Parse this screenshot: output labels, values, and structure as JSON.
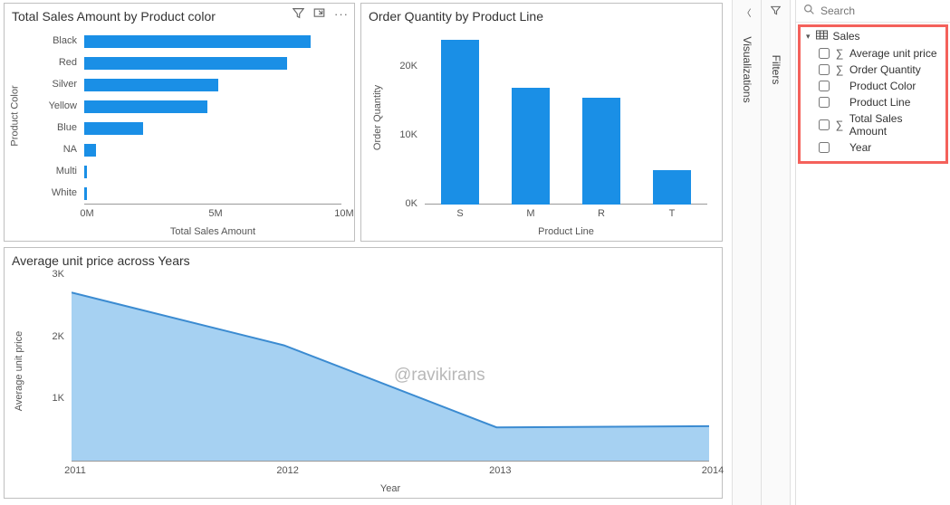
{
  "colors": {
    "primary_bar": "#1a8fe6",
    "area_fill": "#a6d1f2",
    "area_stroke": "#3b8bd1",
    "axis": "#999999",
    "highlight": "#f4615b"
  },
  "chart_hbar": {
    "title": "Total Sales Amount by Product color",
    "type": "horizontal_bar",
    "y_axis_label": "Product Color",
    "x_axis_label": "Total Sales Amount",
    "x_ticks": [
      0,
      5,
      10
    ],
    "x_tick_labels": [
      "0M",
      "5M",
      "10M"
    ],
    "x_max": 10,
    "categories": [
      "Black",
      "Red",
      "Silver",
      "Yellow",
      "Blue",
      "NA",
      "Multi",
      "White"
    ],
    "values": [
      8.8,
      7.9,
      5.2,
      4.8,
      2.3,
      0.45,
      0.1,
      0.1
    ]
  },
  "chart_vbar": {
    "title": "Order Quantity by Product Line",
    "type": "vertical_bar",
    "y_axis_label": "Order Quantity",
    "x_axis_label": "Product Line",
    "y_ticks": [
      0,
      10,
      20
    ],
    "y_tick_labels": [
      "0K",
      "10K",
      "20K"
    ],
    "y_max": 25,
    "categories": [
      "S",
      "M",
      "R",
      "T"
    ],
    "values": [
      24,
      17,
      15.5,
      5
    ]
  },
  "chart_area": {
    "title": "Average unit price across Years",
    "type": "area",
    "y_axis_label": "Average unit price",
    "x_axis_label": "Year",
    "y_ticks": [
      1,
      2,
      3
    ],
    "y_tick_labels": [
      "1K",
      "2K",
      "3K"
    ],
    "y_max": 3,
    "x_values": [
      2011,
      2012,
      2013,
      2014
    ],
    "x_labels": [
      "2011",
      "2012",
      "2013",
      "2014"
    ],
    "y_values": [
      2.72,
      1.87,
      0.55,
      0.57
    ]
  },
  "panes": {
    "viz_label": "Visualizations",
    "filters_label": "Filters"
  },
  "fields": {
    "search_placeholder": "Search",
    "table_name": "Sales",
    "items": [
      {
        "label": "Average unit price",
        "agg": true
      },
      {
        "label": "Order Quantity",
        "agg": true
      },
      {
        "label": "Product Color",
        "agg": false
      },
      {
        "label": "Product Line",
        "agg": false
      },
      {
        "label": "Total Sales Amount",
        "agg": true
      },
      {
        "label": "Year",
        "agg": false
      }
    ]
  },
  "watermark": "@ravikirans",
  "header_icons": {
    "filter": "filter-icon",
    "focus": "focus-mode-icon",
    "more": "more-options-icon"
  }
}
